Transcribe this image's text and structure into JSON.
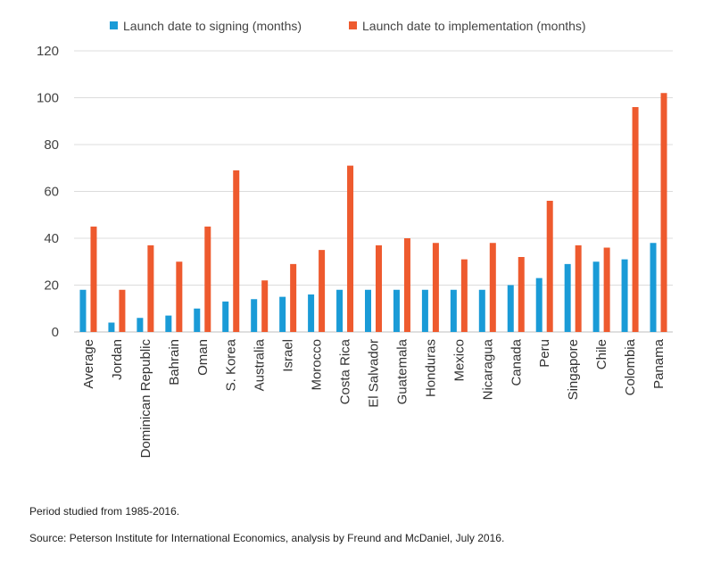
{
  "chart_data": {
    "type": "bar",
    "categories": [
      "Average",
      "Jordan",
      "Dominican Republic",
      "Bahrain",
      "Oman",
      "S. Korea",
      "Australia",
      "Israel",
      "Morocco",
      "Costa Rica",
      "El Salvador",
      "Guatemala",
      "Honduras",
      "Mexico",
      "Nicaragua",
      "Canada",
      "Peru",
      "Singapore",
      "Chile",
      "Colombia",
      "Panama"
    ],
    "series": [
      {
        "name": "Launch date to signing (months)",
        "color": "#1a9bd7",
        "values": [
          18,
          4,
          6,
          7,
          10,
          13,
          14,
          15,
          16,
          18,
          18,
          18,
          18,
          18,
          18,
          20,
          23,
          29,
          30,
          31,
          38
        ]
      },
      {
        "name": "Launch date to implementation (months)",
        "color": "#ee5a2e",
        "values": [
          45,
          18,
          37,
          30,
          45,
          69,
          22,
          29,
          35,
          71,
          37,
          40,
          38,
          31,
          38,
          32,
          56,
          37,
          36,
          96,
          102
        ]
      }
    ],
    "ylim": [
      0,
      120
    ],
    "yticks": [
      0,
      20,
      40,
      60,
      80,
      100,
      120
    ],
    "grid": true,
    "legend": "top"
  },
  "notes": {
    "period": "Period studied from 1985-2016.",
    "source": "Source: Peterson Institute for International Economics, analysis by Freund and McDaniel, July 2016."
  }
}
